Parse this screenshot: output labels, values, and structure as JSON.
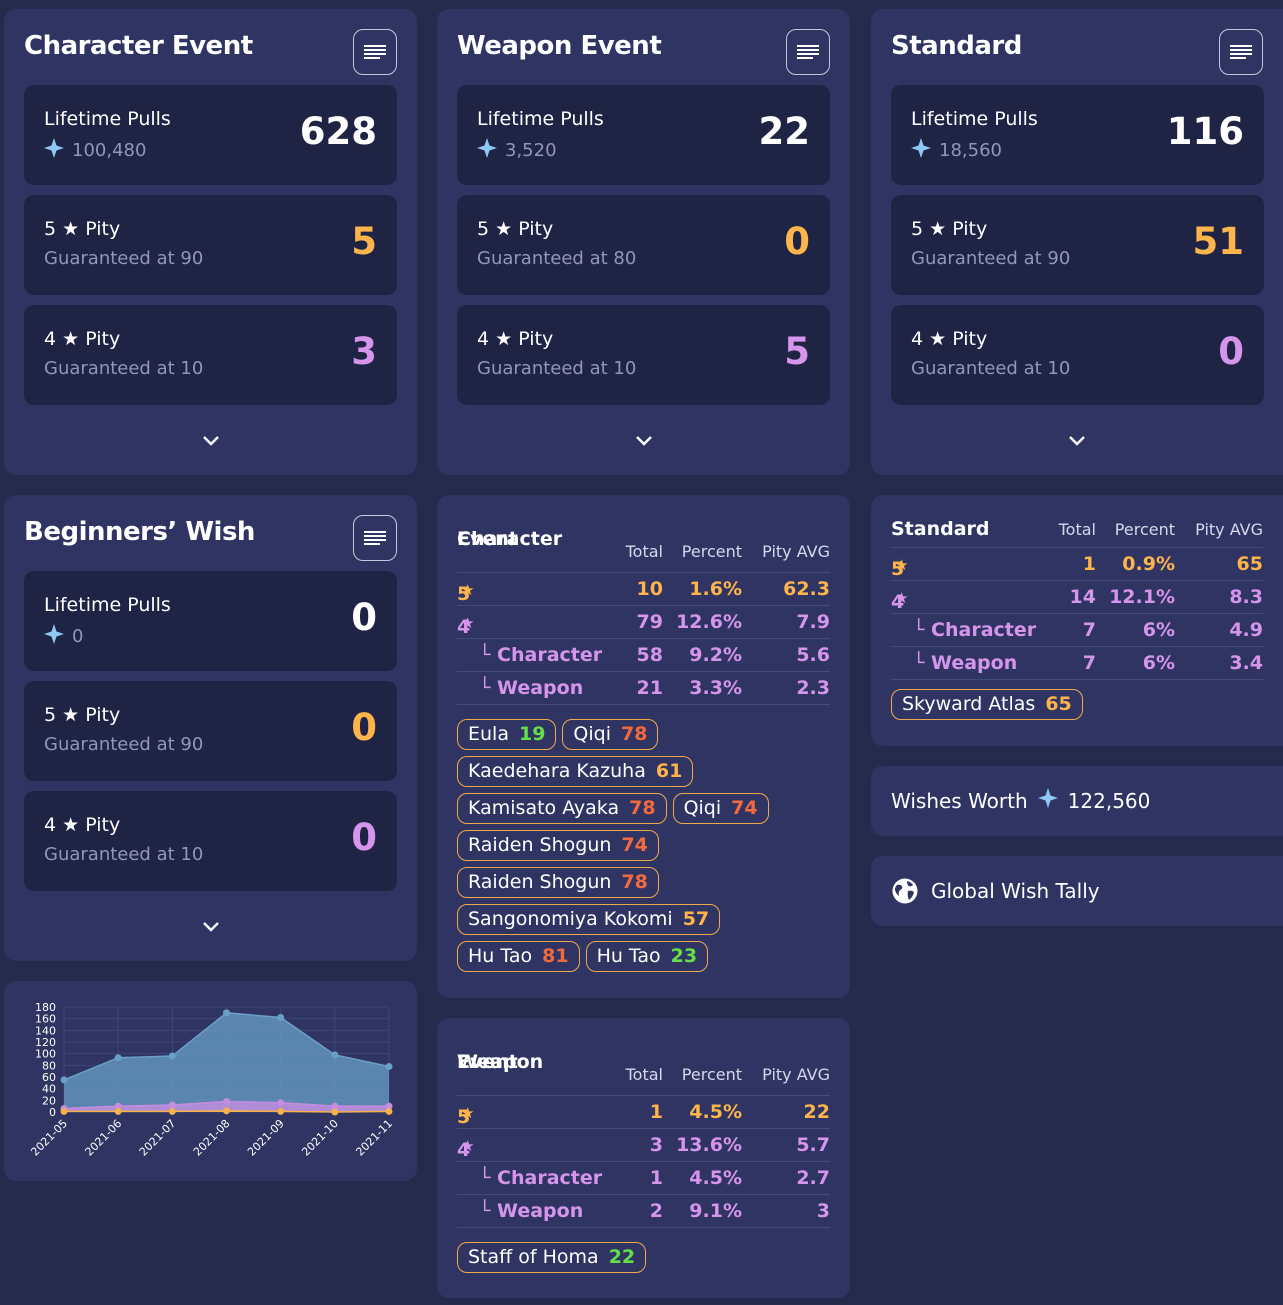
{
  "character_event": {
    "title": "Character Event",
    "lifetime_label": "Lifetime Pulls",
    "lifetime_gems": "100,480",
    "lifetime_value": "628",
    "five_label": "5 ★ Pity",
    "five_sub": "Guaranteed at 90",
    "five_value": "5",
    "four_label": "4 ★ Pity",
    "four_sub": "Guaranteed at 10",
    "four_value": "3"
  },
  "weapon_event": {
    "title": "Weapon Event",
    "lifetime_label": "Lifetime Pulls",
    "lifetime_gems": "3,520",
    "lifetime_value": "22",
    "five_label": "5 ★ Pity",
    "five_sub": "Guaranteed at 80",
    "five_value": "0",
    "four_label": "4 ★ Pity",
    "four_sub": "Guaranteed at 10",
    "four_value": "5"
  },
  "standard": {
    "title": "Standard",
    "lifetime_label": "Lifetime Pulls",
    "lifetime_gems": "18,560",
    "lifetime_value": "116",
    "five_label": "5 ★ Pity",
    "five_sub": "Guaranteed at 90",
    "five_value": "51",
    "four_label": "4 ★ Pity",
    "four_sub": "Guaranteed at 10",
    "four_value": "0"
  },
  "beginners": {
    "title": "Beginners’ Wish",
    "lifetime_label": "Lifetime Pulls",
    "lifetime_gems": "0",
    "lifetime_value": "0",
    "five_label": "5 ★ Pity",
    "five_sub": "Guaranteed at 90",
    "five_value": "0",
    "four_label": "4 ★ Pity",
    "four_sub": "Guaranteed at 10",
    "four_value": "0"
  },
  "char_table": {
    "cat_line1": "Character",
    "cat_line2": "Event",
    "h_total": "Total",
    "h_pct": "Percent",
    "h_avg": "Pity AVG",
    "rows": [
      {
        "label": "5",
        "total": "10",
        "pct": "1.6%",
        "avg": "62.3"
      },
      {
        "label": "4",
        "total": "79",
        "pct": "12.6%",
        "avg": "7.9"
      },
      {
        "label": "└ Character",
        "total": "58",
        "pct": "9.2%",
        "avg": "5.6"
      },
      {
        "label": "└ Weapon",
        "total": "21",
        "pct": "3.3%",
        "avg": "2.3"
      }
    ],
    "tags": [
      {
        "name": "Eula",
        "n": "19"
      },
      {
        "name": "Qiqi",
        "n": "78"
      },
      {
        "name": "Kaedehara Kazuha",
        "n": "61"
      },
      {
        "name": "Kamisato Ayaka",
        "n": "78"
      },
      {
        "name": "Qiqi",
        "n": "74"
      },
      {
        "name": "Raiden Shogun",
        "n": "74"
      },
      {
        "name": "Raiden Shogun",
        "n": "78"
      },
      {
        "name": "Sangonomiya Kokomi",
        "n": "57"
      },
      {
        "name": "Hu Tao",
        "n": "81"
      },
      {
        "name": "Hu Tao",
        "n": "23"
      }
    ]
  },
  "weapon_table": {
    "cat_line1": "Weapon",
    "cat_line2": "Event",
    "h_total": "Total",
    "h_pct": "Percent",
    "h_avg": "Pity AVG",
    "rows": [
      {
        "label": "5",
        "total": "1",
        "pct": "4.5%",
        "avg": "22"
      },
      {
        "label": "4",
        "total": "3",
        "pct": "13.6%",
        "avg": "5.7"
      },
      {
        "label": "└ Character",
        "total": "1",
        "pct": "4.5%",
        "avg": "2.7"
      },
      {
        "label": "└ Weapon",
        "total": "2",
        "pct": "9.1%",
        "avg": "3"
      }
    ],
    "tags": [
      {
        "name": "Staff of Homa",
        "n": "22"
      }
    ]
  },
  "std_table": {
    "cat_line1": "Standard",
    "h_total": "Total",
    "h_pct": "Percent",
    "h_avg": "Pity AVG",
    "rows": [
      {
        "label": "5",
        "total": "1",
        "pct": "0.9%",
        "avg": "65"
      },
      {
        "label": "4",
        "total": "14",
        "pct": "12.1%",
        "avg": "8.3"
      },
      {
        "label": "└ Character",
        "total": "7",
        "pct": "6%",
        "avg": "4.9"
      },
      {
        "label": "└ Weapon",
        "total": "7",
        "pct": "6%",
        "avg": "3.4"
      }
    ],
    "tags": [
      {
        "name": "Skyward Atlas",
        "n": "65"
      }
    ]
  },
  "wishes_worth": {
    "label": "Wishes Worth",
    "value": "122,560"
  },
  "global_tally": {
    "label": "Global Wish Tally",
    "icon": "globe-icon"
  },
  "colors": {
    "accent_orange": "#fdb44b",
    "accent_purple": "#d495eb",
    "panel": "#2f3462",
    "card": "#1f2344"
  },
  "chart_data": {
    "type": "area",
    "x": [
      "2021-05",
      "2021-06",
      "2021-07",
      "2021-08",
      "2021-09",
      "2021-10",
      "2021-11"
    ],
    "yticks": [
      0,
      20,
      40,
      60,
      80,
      100,
      120,
      140,
      160,
      180
    ],
    "ylim": [
      0,
      180
    ],
    "series": [
      {
        "values": [
          55,
          93,
          96,
          170,
          162,
          98,
          78
        ],
        "color": "#6aa0c8"
      },
      {
        "values": [
          6,
          10,
          12,
          18,
          16,
          10,
          10
        ],
        "color": "#c68ce0"
      },
      {
        "values": [
          1,
          1,
          1,
          2,
          1,
          0,
          1
        ],
        "color": "#f6b24a"
      }
    ],
    "grid": true
  }
}
